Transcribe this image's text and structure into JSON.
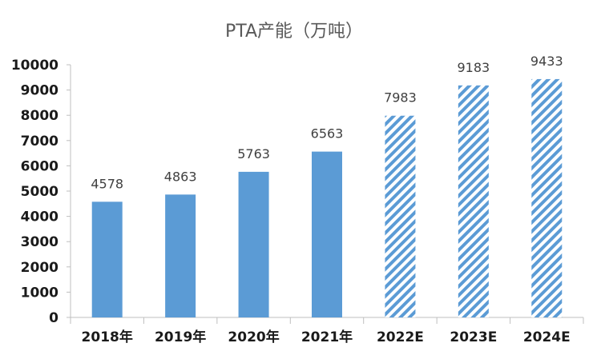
{
  "chart_data": {
    "type": "bar",
    "title": "PTA产能（万吨）",
    "categories": [
      "2018年",
      "2019年",
      "2020年",
      "2021年",
      "2022E",
      "2023E",
      "2024E"
    ],
    "values": [
      4578,
      4863,
      5763,
      6563,
      7983,
      9183,
      9433
    ],
    "estimated": [
      false,
      false,
      false,
      false,
      true,
      true,
      true
    ],
    "ylim": [
      0,
      10000
    ],
    "yticks": [
      0,
      1000,
      2000,
      3000,
      4000,
      5000,
      6000,
      7000,
      8000,
      9000,
      10000
    ],
    "grid": false,
    "legend": "none",
    "colors": {
      "bar": "#5b9bd5",
      "axis": "#bfbfbf",
      "title": "#595959"
    }
  }
}
